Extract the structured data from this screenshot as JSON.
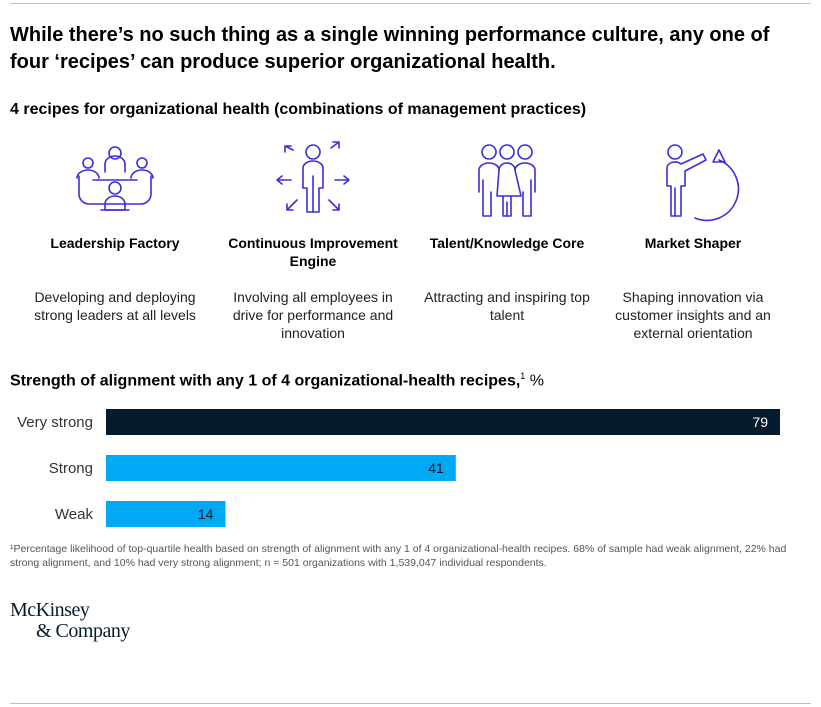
{
  "headline": "While there’s no such thing as a single winning performance culture, any one of four ‘recipes’ can produce superior organizational health.",
  "subtitle": "4 recipes for organizational health (combinations of management practices)",
  "recipes": [
    {
      "icon": "leadership-team-icon",
      "name": "Leadership Factory",
      "description": "Developing and deploying strong leaders at all levels"
    },
    {
      "icon": "continuous-improvement-icon",
      "name": "Continuous Improvement Engine",
      "description": "Involving all employees in drive for performance and innovation"
    },
    {
      "icon": "talent-group-icon",
      "name": "Talent/Knowledge Core",
      "description": "Attracting and inspiring top talent"
    },
    {
      "icon": "market-shaper-icon",
      "name": "Market Shaper",
      "description": "Shaping innovation via customer insights and an external orientation"
    }
  ],
  "chart_title": {
    "text": "Strength of alignment with any 1 of 4 organizational-health recipes,",
    "footnote_marker": "1",
    "unit": " %"
  },
  "chart_data": {
    "type": "bar",
    "orientation": "horizontal",
    "title": "Strength of alignment with any 1 of 4 organizational-health recipes, %",
    "categories": [
      "Very strong",
      "Strong",
      "Weak"
    ],
    "values": [
      79,
      41,
      14
    ],
    "colors": [
      "#051c2c",
      "#00a9f4",
      "#00a9f4"
    ],
    "label_colors": [
      "#ffffff",
      "#051c2c",
      "#051c2c"
    ],
    "xlim": [
      0,
      80
    ],
    "xlabel": "",
    "ylabel": ""
  },
  "footnote": "¹Percentage likelihood of top-quartile health based on strength of alignment with any 1 of 4 organizational-health recipes. 68% of sample had weak alignment, 22% had strong alignment, and 10% had very strong alignment; n = 501 organizations with 1,539,047 individual respondents.",
  "logo": {
    "line1": "McKinsey",
    "line2": "& Company"
  },
  "colors": {
    "icon_stroke": "#3a2fd8",
    "dark_navy": "#051c2c",
    "cyan": "#00a9f4"
  }
}
